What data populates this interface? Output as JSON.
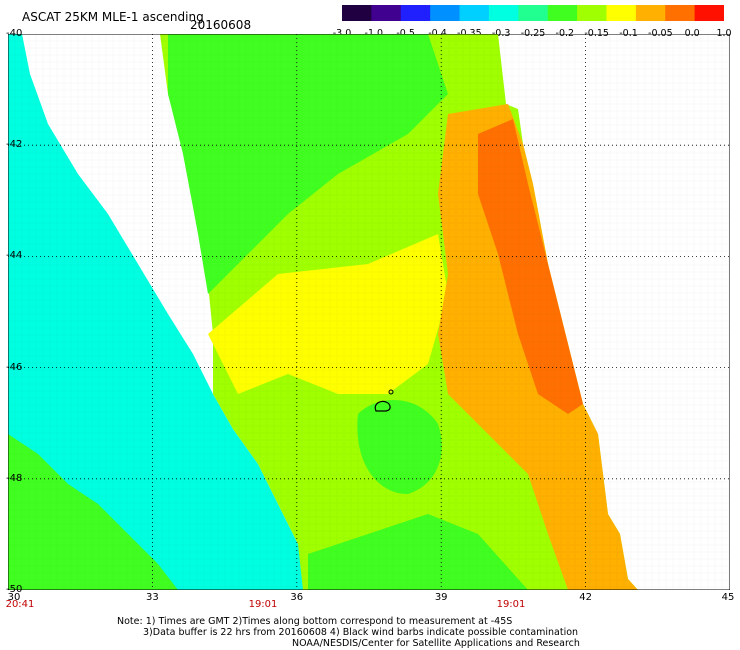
{
  "header": {
    "title": "ASCAT 25KM MLE-1 ascending",
    "date": "20160608"
  },
  "colorbar": {
    "labels": [
      "-3.0",
      "-1.0",
      "-0.5",
      "-0.4",
      "-0.35",
      "-0.3",
      "-0.25",
      "-0.2",
      "-0.15",
      "-0.1",
      "-0.05",
      "0.0",
      "1.0"
    ],
    "colors": [
      "#200040",
      "#400090",
      "#2020ff",
      "#0090ff",
      "#00d0ff",
      "#00ffe0",
      "#20ff90",
      "#40ff20",
      "#a0ff00",
      "#ffff00",
      "#ffb000",
      "#ff7000",
      "#ff1000"
    ]
  },
  "axes": {
    "y_labels": [
      "-40",
      "-42",
      "-44",
      "-46",
      "-48",
      "-50"
    ],
    "x_labels": [
      "30",
      "33",
      "36",
      "39",
      "42",
      "45"
    ],
    "time_labels": [
      "20:41",
      "19:01",
      "19:01"
    ]
  },
  "map": {
    "swath_colors": {
      "cyan": "#00ffe0",
      "green": "#40ff20",
      "light_green": "#a0ff00",
      "yellow": "#ffff00",
      "orange": "#ffb000",
      "dark_orange": "#ff7000"
    }
  },
  "footer": {
    "line1": "Note: 1) Times are GMT 2)Times along bottom correspond to measurement at -45S",
    "line2": "3)Data buffer is 22 hrs from 20160608 4) Black wind barbs indicate possible contamination",
    "line3": "NOAA/NESDIS/Center for Satellite Applications and Research"
  }
}
